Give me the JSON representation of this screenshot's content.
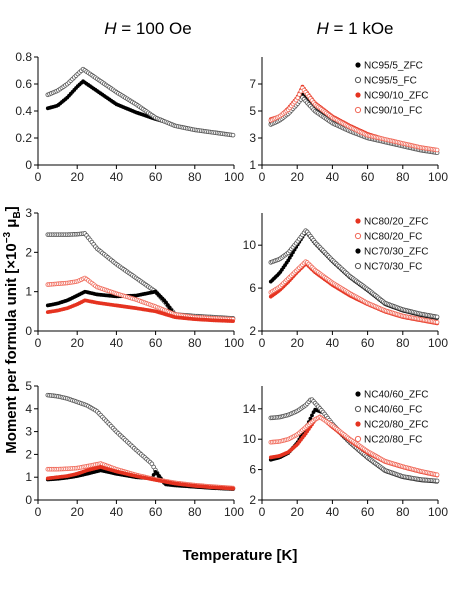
{
  "figure": {
    "col_titles": [
      {
        "symbol": "H",
        "rest": " = 100 Oe"
      },
      {
        "symbol": "H",
        "rest": " = 1 kOe"
      }
    ],
    "ylabel": {
      "main": "Moment per formula unit [×10",
      "sup": "−3",
      "mid": " μ",
      "sub": "B",
      "end": "]"
    },
    "xlabel": "Temperature [K]"
  },
  "chart_data": [
    {
      "type": "scatter",
      "panel": "row1-left",
      "xlim": [
        0,
        100
      ],
      "ylim": [
        0,
        0.8
      ],
      "xticks": [
        "0",
        "20",
        "40",
        "60",
        "80",
        "100"
      ],
      "yticks": [
        "0",
        "0.2",
        "0.4",
        "0.6",
        "0.8"
      ],
      "legend": "none",
      "series": [
        {
          "label": "NC95/5_ZFC",
          "color": "#000000",
          "marker": "filled",
          "x": [
            5,
            10,
            15,
            20,
            23,
            30,
            40,
            50,
            60,
            65,
            70,
            80,
            90,
            100
          ],
          "y": [
            0.42,
            0.44,
            0.5,
            0.58,
            0.62,
            0.55,
            0.45,
            0.39,
            0.34,
            0.32,
            0.29,
            0.26,
            0.24,
            0.22
          ]
        },
        {
          "label": "NC95/5_FC",
          "color": "#555555",
          "marker": "open",
          "x": [
            5,
            10,
            15,
            20,
            23,
            30,
            40,
            50,
            60,
            65,
            70,
            80,
            90,
            100
          ],
          "y": [
            0.52,
            0.55,
            0.6,
            0.67,
            0.71,
            0.64,
            0.54,
            0.45,
            0.35,
            0.32,
            0.29,
            0.26,
            0.24,
            0.22
          ]
        }
      ]
    },
    {
      "type": "scatter",
      "panel": "row1-right",
      "xlim": [
        0,
        100
      ],
      "ylim": [
        1,
        9
      ],
      "xticks": [
        "0",
        "20",
        "40",
        "60",
        "80",
        "100"
      ],
      "yticks": [
        "1",
        "3",
        "5",
        "7"
      ],
      "legend": "top-right",
      "series": [
        {
          "label": "NC95/5_ZFC",
          "color": "#000000",
          "marker": "filled",
          "x": [
            5,
            10,
            15,
            20,
            23,
            30,
            40,
            50,
            60,
            70,
            80,
            90,
            100
          ],
          "y": [
            4.1,
            4.4,
            4.9,
            5.6,
            6.2,
            5.1,
            4.2,
            3.6,
            3.1,
            2.8,
            2.5,
            2.2,
            2.0
          ]
        },
        {
          "label": "NC95/5_FC",
          "color": "#555555",
          "marker": "open",
          "x": [
            5,
            10,
            15,
            20,
            23,
            30,
            40,
            50,
            60,
            70,
            80,
            90,
            100
          ],
          "y": [
            4.0,
            4.3,
            4.8,
            5.5,
            6.0,
            5.0,
            4.1,
            3.5,
            3.0,
            2.7,
            2.4,
            2.1,
            1.9
          ]
        },
        {
          "label": "NC90/10_ZFC",
          "color": "#e53320",
          "marker": "filled",
          "x": [
            5,
            10,
            15,
            20,
            23,
            30,
            40,
            50,
            60,
            70,
            80,
            90,
            100
          ],
          "y": [
            4.4,
            4.6,
            5.2,
            6.0,
            6.8,
            5.6,
            4.6,
            3.9,
            3.3,
            2.9,
            2.6,
            2.3,
            2.1
          ]
        },
        {
          "label": "NC90/10_FC",
          "color": "#f06a5a",
          "marker": "open",
          "x": [
            5,
            10,
            15,
            20,
            23,
            30,
            40,
            50,
            60,
            70,
            80,
            90,
            100
          ],
          "y": [
            4.3,
            4.6,
            5.1,
            5.9,
            6.7,
            5.5,
            4.5,
            3.8,
            3.2,
            2.9,
            2.6,
            2.3,
            2.1
          ]
        }
      ]
    },
    {
      "type": "scatter",
      "panel": "row2-left",
      "xlim": [
        0,
        100
      ],
      "ylim": [
        0,
        3
      ],
      "xticks": [
        "0",
        "20",
        "40",
        "60",
        "80",
        "100"
      ],
      "yticks": [
        "0",
        "1",
        "2",
        "3"
      ],
      "legend": "none",
      "series": [
        {
          "label": "NC70/30_FC",
          "color": "#555555",
          "marker": "open",
          "x": [
            5,
            10,
            15,
            20,
            24,
            30,
            40,
            50,
            60,
            65,
            70,
            80,
            90,
            100
          ],
          "y": [
            2.45,
            2.45,
            2.45,
            2.46,
            2.48,
            2.1,
            1.7,
            1.35,
            1.0,
            0.72,
            0.42,
            0.38,
            0.35,
            0.32
          ]
        },
        {
          "label": "NC70/30_ZFC",
          "color": "#000000",
          "marker": "filled",
          "x": [
            5,
            10,
            15,
            20,
            24,
            30,
            40,
            50,
            60,
            65,
            70,
            80,
            90,
            100
          ],
          "y": [
            0.65,
            0.7,
            0.78,
            0.9,
            1.0,
            0.93,
            0.88,
            0.9,
            1.0,
            0.75,
            0.38,
            0.35,
            0.32,
            0.3
          ]
        },
        {
          "label": "NC80/20_FC",
          "color": "#f06a5a",
          "marker": "open",
          "x": [
            5,
            10,
            15,
            20,
            24,
            30,
            40,
            50,
            60,
            70,
            80,
            90,
            100
          ],
          "y": [
            1.18,
            1.2,
            1.22,
            1.26,
            1.35,
            1.12,
            0.95,
            0.8,
            0.62,
            0.42,
            0.35,
            0.32,
            0.3
          ]
        },
        {
          "label": "NC80/20_ZFC",
          "color": "#e53320",
          "marker": "filled",
          "x": [
            5,
            10,
            15,
            20,
            24,
            30,
            40,
            50,
            60,
            70,
            80,
            90,
            100
          ],
          "y": [
            0.48,
            0.52,
            0.58,
            0.68,
            0.78,
            0.72,
            0.65,
            0.58,
            0.5,
            0.35,
            0.3,
            0.27,
            0.25
          ]
        }
      ]
    },
    {
      "type": "scatter",
      "panel": "row2-right",
      "xlim": [
        0,
        100
      ],
      "ylim": [
        2,
        13
      ],
      "xticks": [
        "0",
        "20",
        "40",
        "60",
        "80",
        "100"
      ],
      "yticks": [
        "2",
        "6",
        "10"
      ],
      "legend": "top-right",
      "series": [
        {
          "label": "NC80/20_ZFC",
          "color": "#e53320",
          "marker": "filled",
          "x": [
            5,
            10,
            15,
            20,
            25,
            30,
            40,
            50,
            60,
            70,
            80,
            90,
            100
          ],
          "y": [
            5.2,
            5.8,
            6.6,
            7.5,
            8.3,
            7.5,
            6.3,
            5.3,
            4.5,
            3.8,
            3.3,
            3.0,
            2.7
          ]
        },
        {
          "label": "NC80/20_FC",
          "color": "#f06a5a",
          "marker": "open",
          "x": [
            5,
            10,
            15,
            20,
            25,
            30,
            40,
            50,
            60,
            70,
            80,
            90,
            100
          ],
          "y": [
            5.6,
            6.1,
            6.9,
            7.7,
            8.5,
            7.7,
            6.5,
            5.5,
            4.6,
            3.9,
            3.4,
            3.1,
            2.8
          ]
        },
        {
          "label": "NC70/30_ZFC",
          "color": "#000000",
          "marker": "filled",
          "x": [
            5,
            10,
            15,
            20,
            25,
            30,
            40,
            50,
            60,
            70,
            80,
            90,
            100
          ],
          "y": [
            6.6,
            7.4,
            8.6,
            10.0,
            11.3,
            10.2,
            8.5,
            7.0,
            5.8,
            4.5,
            3.9,
            3.5,
            3.2
          ]
        },
        {
          "label": "NC70/30_FC",
          "color": "#555555",
          "marker": "open",
          "x": [
            5,
            10,
            15,
            20,
            25,
            30,
            40,
            50,
            60,
            70,
            80,
            90,
            100
          ],
          "y": [
            8.4,
            8.7,
            9.3,
            10.3,
            11.4,
            10.3,
            8.6,
            7.1,
            5.9,
            4.6,
            4.0,
            3.6,
            3.3
          ]
        }
      ]
    },
    {
      "type": "scatter",
      "panel": "row3-left",
      "xlim": [
        0,
        100
      ],
      "ylim": [
        0,
        5
      ],
      "xticks": [
        "0",
        "20",
        "40",
        "60",
        "80",
        "100"
      ],
      "yticks": [
        "0",
        "1",
        "2",
        "3",
        "4",
        "5"
      ],
      "legend": "none",
      "series": [
        {
          "label": "NC40/60_FC",
          "color": "#555555",
          "marker": "open",
          "x": [
            5,
            10,
            15,
            20,
            25,
            30,
            40,
            50,
            58,
            62,
            65,
            70,
            80,
            90,
            100
          ],
          "y": [
            4.6,
            4.55,
            4.45,
            4.3,
            4.15,
            3.9,
            3.0,
            2.2,
            1.6,
            1.0,
            0.7,
            0.65,
            0.6,
            0.55,
            0.5
          ]
        },
        {
          "label": "NC40/60_ZFC",
          "color": "#000000",
          "marker": "filled",
          "x": [
            5,
            10,
            15,
            20,
            25,
            32,
            40,
            50,
            58,
            60,
            63,
            65,
            70,
            80,
            90,
            100
          ],
          "y": [
            0.9,
            0.93,
            0.98,
            1.05,
            1.15,
            1.3,
            1.15,
            1.0,
            0.95,
            1.25,
            0.9,
            0.7,
            0.65,
            0.58,
            0.52,
            0.48
          ]
        },
        {
          "label": "NC20/80_FC",
          "color": "#f06a5a",
          "marker": "open",
          "x": [
            5,
            10,
            15,
            20,
            25,
            32,
            40,
            50,
            60,
            70,
            80,
            90,
            100
          ],
          "y": [
            1.35,
            1.35,
            1.37,
            1.4,
            1.48,
            1.6,
            1.35,
            1.1,
            0.9,
            0.75,
            0.65,
            0.58,
            0.52
          ]
        },
        {
          "label": "NC20/80_ZFC",
          "color": "#e53320",
          "marker": "filled",
          "x": [
            5,
            10,
            15,
            20,
            25,
            32,
            40,
            50,
            60,
            70,
            80,
            90,
            100
          ],
          "y": [
            0.95,
            1.0,
            1.05,
            1.15,
            1.3,
            1.45,
            1.25,
            1.05,
            0.88,
            0.72,
            0.62,
            0.55,
            0.5
          ]
        }
      ]
    },
    {
      "type": "scatter",
      "panel": "row3-right",
      "xlim": [
        0,
        100
      ],
      "ylim": [
        2,
        17
      ],
      "xticks": [
        "0",
        "20",
        "40",
        "60",
        "80",
        "100"
      ],
      "yticks": [
        "2",
        "6",
        "10",
        "14"
      ],
      "legend": "top-right",
      "series": [
        {
          "label": "NC40/60_ZFC",
          "color": "#000000",
          "marker": "filled",
          "x": [
            5,
            10,
            15,
            20,
            25,
            30,
            35,
            40,
            50,
            60,
            70,
            80,
            90,
            100
          ],
          "y": [
            7.3,
            7.6,
            8.2,
            9.5,
            11.5,
            13.9,
            13.5,
            11.8,
            9.5,
            7.5,
            5.8,
            5.0,
            4.6,
            4.4
          ]
        },
        {
          "label": "NC40/60_FC",
          "color": "#555555",
          "marker": "open",
          "x": [
            5,
            10,
            15,
            20,
            25,
            28,
            30,
            35,
            40,
            50,
            60,
            70,
            80,
            90,
            100
          ],
          "y": [
            12.8,
            12.9,
            13.2,
            13.7,
            14.5,
            15.3,
            14.8,
            13.5,
            12.0,
            9.6,
            7.6,
            5.9,
            5.1,
            4.7,
            4.5
          ]
        },
        {
          "label": "NC20/80_ZFC",
          "color": "#e53320",
          "marker": "filled",
          "x": [
            5,
            10,
            15,
            20,
            25,
            30,
            33,
            40,
            50,
            60,
            70,
            80,
            90,
            100
          ],
          "y": [
            7.6,
            7.8,
            8.3,
            9.3,
            10.8,
            12.5,
            13.0,
            11.6,
            9.8,
            8.2,
            7.0,
            6.3,
            5.7,
            5.2
          ]
        },
        {
          "label": "NC20/80_FC",
          "color": "#f06a5a",
          "marker": "open",
          "x": [
            5,
            10,
            15,
            20,
            25,
            30,
            33,
            40,
            50,
            60,
            70,
            80,
            90,
            100
          ],
          "y": [
            9.6,
            9.7,
            10.0,
            10.6,
            11.6,
            12.6,
            12.9,
            11.8,
            10.0,
            8.4,
            7.1,
            6.4,
            5.8,
            5.3
          ]
        }
      ]
    }
  ]
}
